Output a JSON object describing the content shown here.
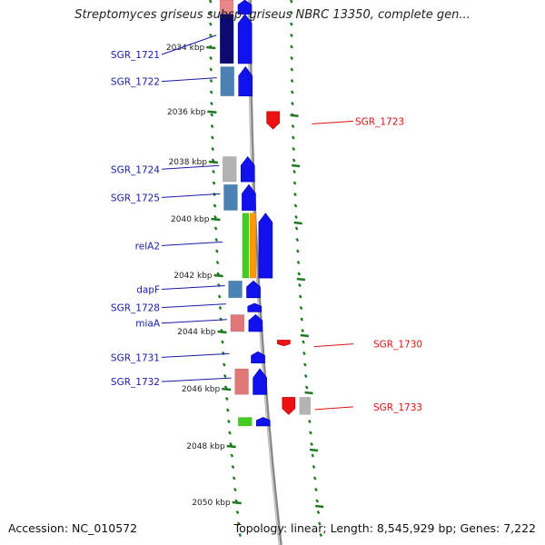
{
  "title": "Streptomyces griseus subsp. griseus NBRC 13350, complete gen...",
  "accession": "Accession: NC_010572",
  "summary": "Topology: linear; Length: 8,545,929 bp; Genes: 7,222",
  "colors": {
    "forward_label": "#1a1aa8",
    "reverse_label": "#dd1111",
    "tick": "#1f7a1f",
    "backbone": "#888888",
    "forward_cds": "#1111ee",
    "reverse_cds": "#ee1111"
  },
  "scale_labels": [
    {
      "text": "2034 kbp",
      "kbp": 2034
    },
    {
      "text": "2036 kbp",
      "kbp": 2036
    },
    {
      "text": "2038 kbp",
      "kbp": 2038
    },
    {
      "text": "2040 kbp",
      "kbp": 2040
    },
    {
      "text": "2042 kbp",
      "kbp": 2042
    },
    {
      "text": "2044 kbp",
      "kbp": 2044
    },
    {
      "text": "2046 kbp",
      "kbp": 2046
    },
    {
      "text": "2048 kbp",
      "kbp": 2048
    },
    {
      "text": "2050 kbp",
      "kbp": 2050
    }
  ],
  "genes": [
    {
      "label": "",
      "strand": "+",
      "start_kbp": 2033.0,
      "end_kbp": 2033.3,
      "ann": [
        "#e98888"
      ]
    },
    {
      "label": "SGR_1721",
      "strand": "+",
      "start_kbp": 2033.3,
      "end_kbp": 2034.5,
      "ann": [
        "#0a0a70"
      ]
    },
    {
      "label": "SGR_1722",
      "strand": "+",
      "start_kbp": 2034.6,
      "end_kbp": 2035.5,
      "ann": [
        "#4a82b4"
      ]
    },
    {
      "label": "SGR_1723",
      "strand": "-",
      "start_kbp": 2036.0,
      "end_kbp": 2036.7,
      "ann": []
    },
    {
      "label": "SGR_1724",
      "strand": "+",
      "start_kbp": 2037.8,
      "end_kbp": 2038.7,
      "ann": [
        "#b3b3b3"
      ]
    },
    {
      "label": "SGR_1725",
      "strand": "+",
      "start_kbp": 2038.8,
      "end_kbp": 2039.7,
      "ann": [
        "#4a82b4"
      ]
    },
    {
      "label": "relA2",
      "strand": "+",
      "start_kbp": 2039.8,
      "end_kbp": 2042.1,
      "ann": [
        "#44cc22",
        "#ff9900"
      ]
    },
    {
      "label": "dapF",
      "strand": "+",
      "start_kbp": 2042.2,
      "end_kbp": 2042.8,
      "ann": [
        "#4a82b4"
      ]
    },
    {
      "label": "SGR_1728",
      "strand": "+",
      "start_kbp": 2043.0,
      "end_kbp": 2043.3,
      "ann": []
    },
    {
      "label": "miaA",
      "strand": "+",
      "start_kbp": 2043.4,
      "end_kbp": 2044.0,
      "ann": [
        "#e07878"
      ]
    },
    {
      "label": "SGR_1730",
      "strand": "-",
      "start_kbp": 2044.3,
      "end_kbp": 2044.5,
      "ann": []
    },
    {
      "label": "SGR_1731",
      "strand": "+",
      "start_kbp": 2044.7,
      "end_kbp": 2045.1,
      "ann": []
    },
    {
      "label": "SGR_1732",
      "strand": "+",
      "start_kbp": 2045.3,
      "end_kbp": 2046.2,
      "ann": [
        "#e07878"
      ]
    },
    {
      "label": "SGR_1733",
      "strand": "-",
      "start_kbp": 2046.3,
      "end_kbp": 2046.9,
      "ann": [
        "#b3b3b3"
      ]
    },
    {
      "label": "",
      "strand": "+",
      "start_kbp": 2047.0,
      "end_kbp": 2047.3,
      "ann": [
        "#44cc22"
      ]
    }
  ]
}
